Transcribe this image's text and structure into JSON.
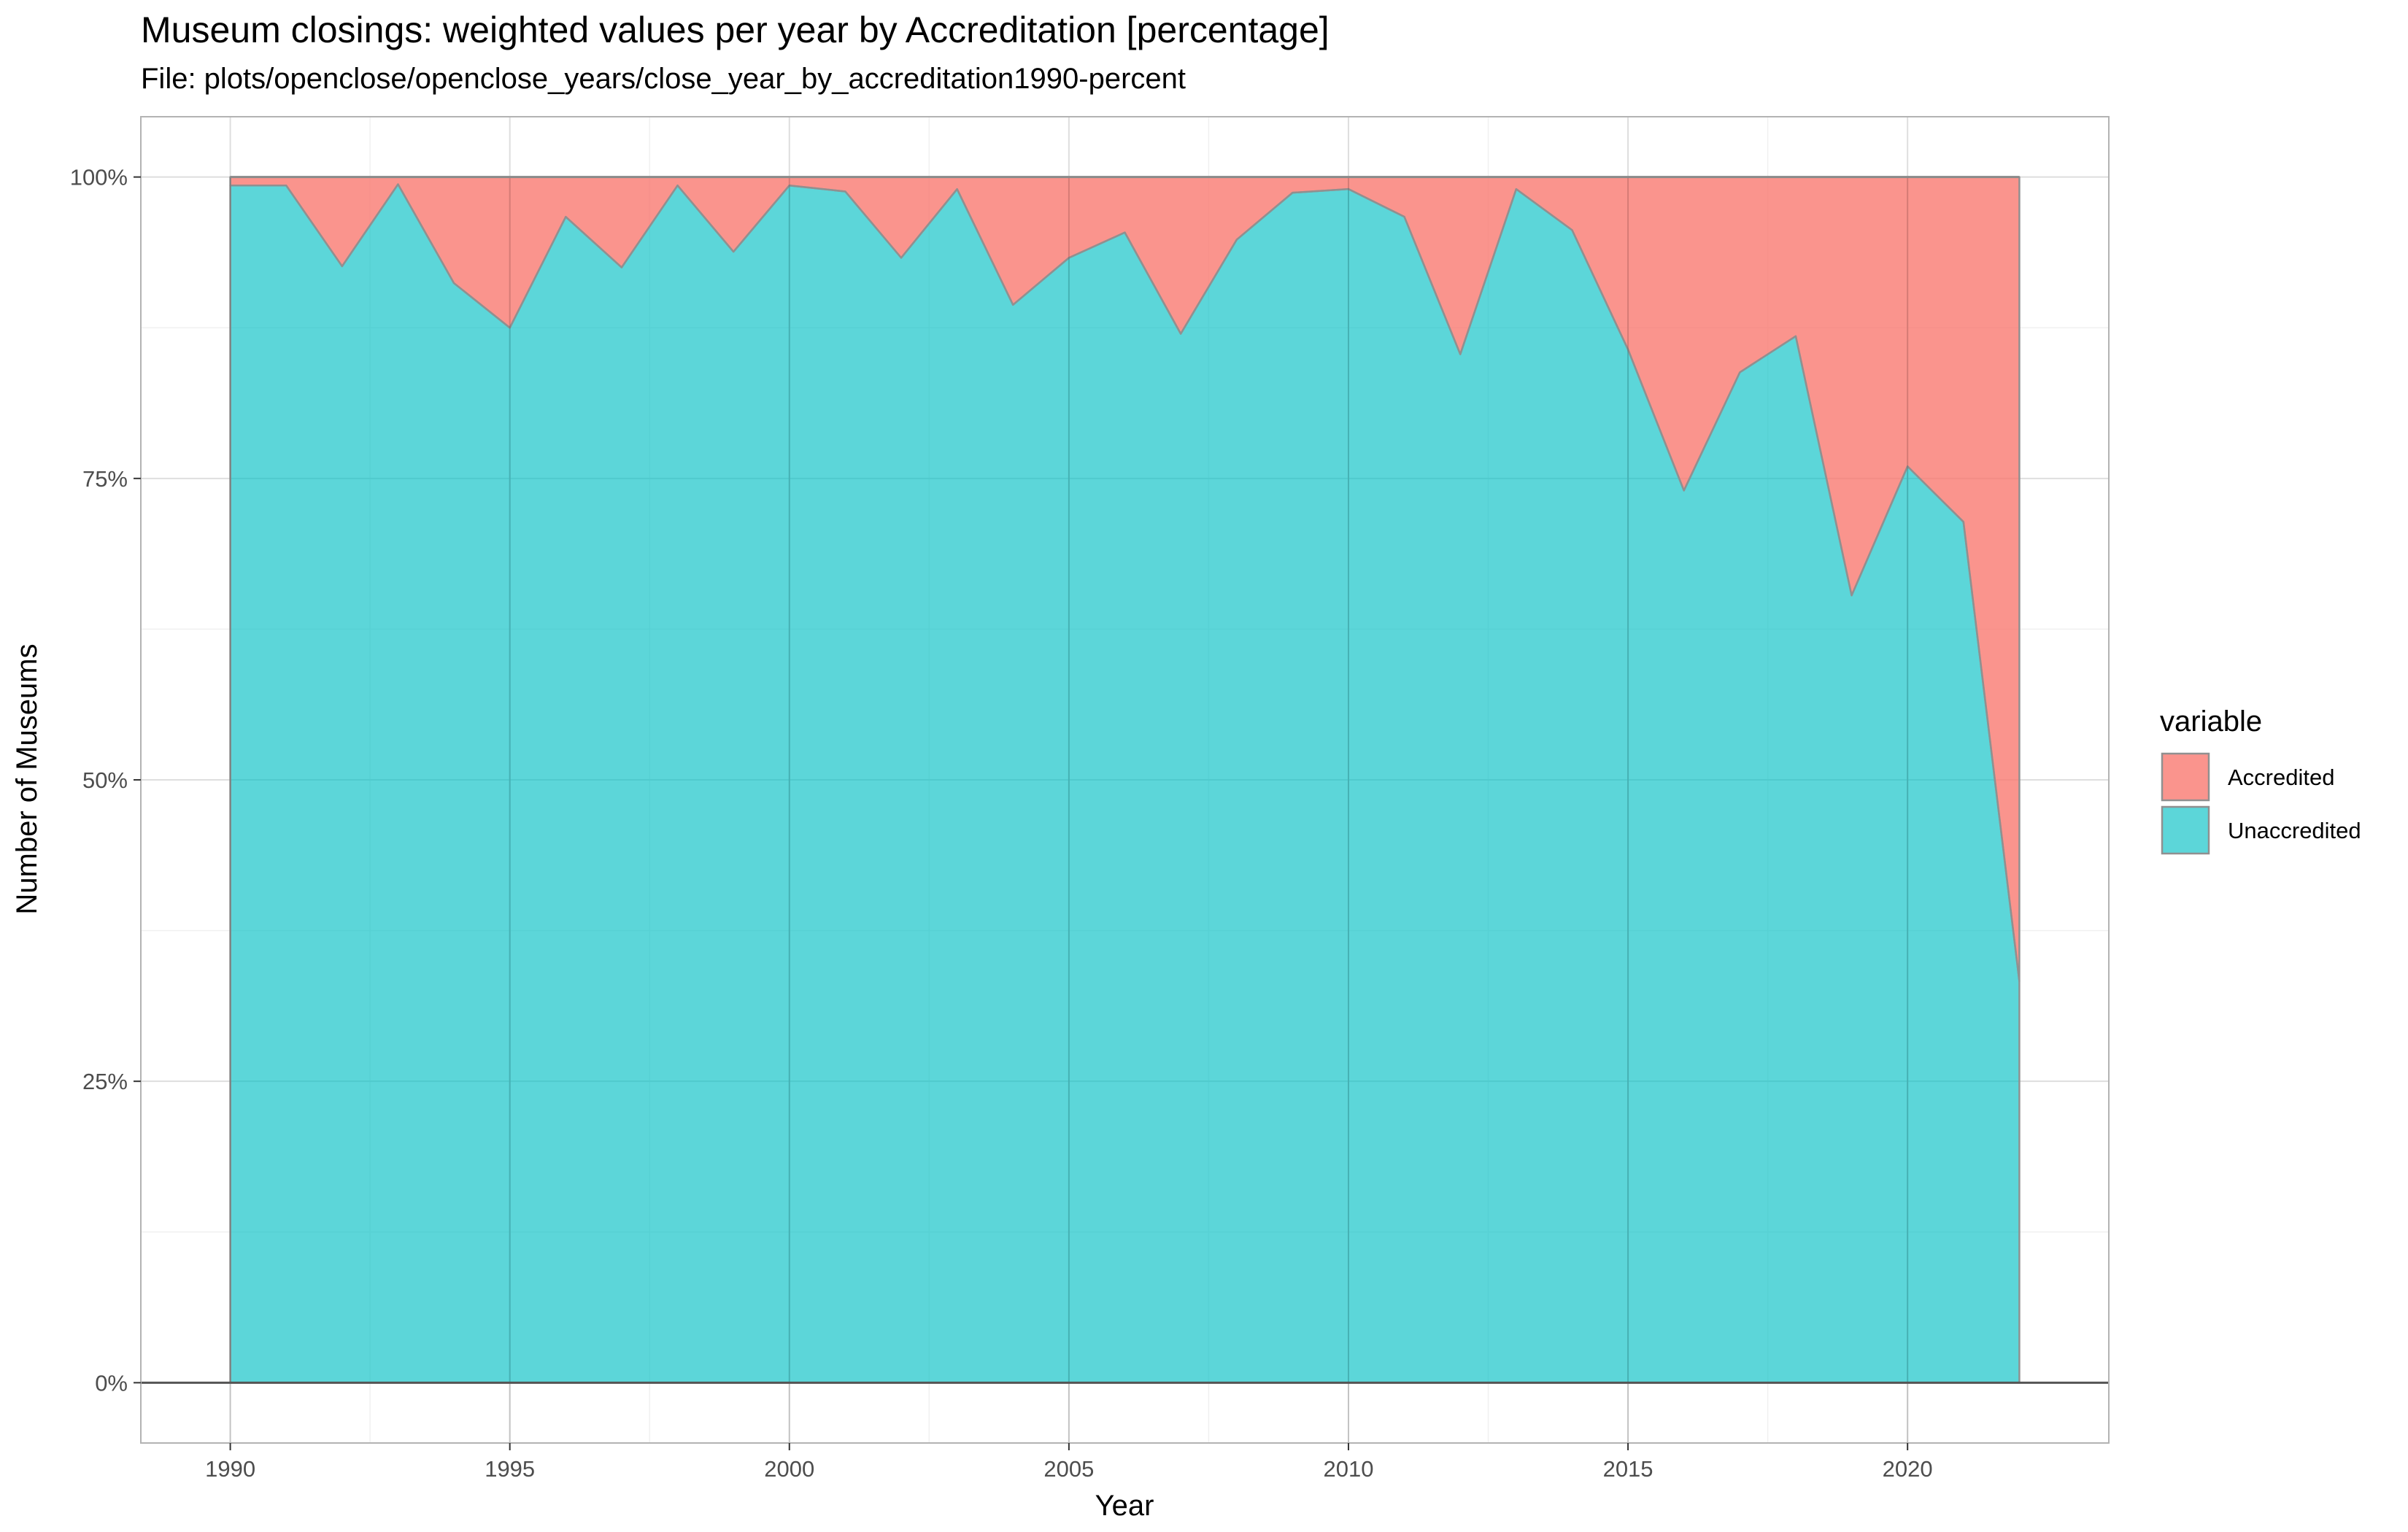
{
  "chart_data": {
    "type": "area",
    "title": "Museum closings: weighted values per year by Accreditation [percentage]",
    "subtitle": "File: plots/openclose/openclose_years/close_year_by_accreditation1990-percent",
    "xlabel": "Year",
    "ylabel": "Number of Museums",
    "x": [
      1990,
      1991,
      1992,
      1993,
      1994,
      1995,
      1996,
      1997,
      1998,
      1999,
      2000,
      2001,
      2002,
      2003,
      2004,
      2005,
      2006,
      2007,
      2008,
      2009,
      2010,
      2011,
      2012,
      2013,
      2014,
      2015,
      2016,
      2017,
      2018,
      2019,
      2020,
      2021,
      2022
    ],
    "x_ticks": [
      1990,
      1995,
      2000,
      2005,
      2010,
      2015,
      2020
    ],
    "x_tick_labels": [
      "1990",
      "1995",
      "2000",
      "2005",
      "2010",
      "2015",
      "2020"
    ],
    "y_ticks": [
      0,
      0.25,
      0.5,
      0.75,
      1.0
    ],
    "y_tick_labels": [
      "0%",
      "25%",
      "50%",
      "75%",
      "100%"
    ],
    "ylim": [
      -0.05,
      1.05
    ],
    "xlim": [
      1988.4,
      2023.6
    ],
    "stacked": true,
    "grid": true,
    "legend": {
      "title": "variable",
      "position": "right"
    },
    "series": [
      {
        "name": "Accredited",
        "color": "#F8766D",
        "values": [
          0.007,
          0.007,
          0.074,
          0.006,
          0.088,
          0.125,
          0.033,
          0.075,
          0.007,
          0.062,
          0.007,
          0.012,
          0.067,
          0.01,
          0.106,
          0.067,
          0.046,
          0.13,
          0.052,
          0.013,
          0.01,
          0.033,
          0.147,
          0.01,
          0.044,
          0.143,
          0.26,
          0.162,
          0.132,
          0.347,
          0.24,
          0.286,
          0.667
        ]
      },
      {
        "name": "Unaccredited",
        "color": "#00BFC4",
        "values": [
          0.993,
          0.993,
          0.926,
          0.994,
          0.912,
          0.875,
          0.967,
          0.925,
          0.993,
          0.938,
          0.993,
          0.988,
          0.933,
          0.99,
          0.894,
          0.933,
          0.954,
          0.87,
          0.948,
          0.987,
          0.99,
          0.967,
          0.853,
          0.99,
          0.956,
          0.857,
          0.74,
          0.838,
          0.868,
          0.653,
          0.76,
          0.714,
          0.333
        ]
      }
    ]
  }
}
